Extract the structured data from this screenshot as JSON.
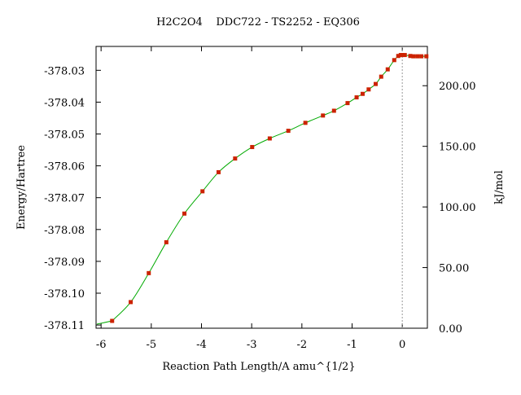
{
  "chart_data": {
    "type": "line",
    "title": "H2C2O4    DDC722 - TS2252 - EQ306",
    "xlabel": "Reaction Path Length/A amu^{1/2}",
    "ylabel": "Energy/Hartree",
    "y2label": "kJ/mol",
    "xlim": [
      -6.1,
      0.5
    ],
    "ylim": [
      -378.111,
      -378.0225
    ],
    "y2lim": [
      0.0,
      232.4
    ],
    "grid": false,
    "legend": "none",
    "x_ticks": [
      -6,
      -5,
      -4,
      -3,
      -2,
      -1,
      0
    ],
    "x_tick_labels": [
      "-6",
      "-5",
      "-4",
      "-3",
      "-2",
      "-1",
      "0"
    ],
    "y_ticks": [
      -378.11,
      -378.1,
      -378.09,
      -378.08,
      -378.07,
      -378.06,
      -378.05,
      -378.04,
      -378.03
    ],
    "y_tick_labels": [
      "-378.11",
      "-378.10",
      "-378.09",
      "-378.08",
      "-378.07",
      "-378.06",
      "-378.05",
      "-378.04",
      "-378.03"
    ],
    "y2_ticks": [
      0,
      50,
      100,
      150,
      200
    ],
    "y2_tick_labels": [
      "0.00",
      "50.00",
      "100.00",
      "150.00",
      "200.00"
    ],
    "ts_marker_x": 0,
    "line_color": "#00aa00",
    "marker_color": "#cc2200",
    "ts_line_color": "#999999",
    "series": [
      {
        "x": [
          -5.78,
          -5.41,
          -5.05,
          -4.7,
          -4.34,
          -3.98,
          -3.66,
          -3.33,
          -2.99,
          -2.64,
          -2.27,
          -1.93,
          -1.58,
          -1.36,
          -1.09,
          -0.91,
          -0.79,
          -0.67,
          -0.53,
          -0.42,
          -0.29,
          -0.16,
          -0.08,
          -0.03,
          0.0,
          0.05,
          0.16,
          0.22,
          0.3,
          0.38,
          0.48
        ],
        "y": [
          -378.1087,
          -378.1028,
          -378.0937,
          -378.084,
          -378.075,
          -378.068,
          -378.062,
          -378.0577,
          -378.0541,
          -378.0514,
          -378.049,
          -378.0465,
          -378.0442,
          -378.0427,
          -378.0403,
          -378.0385,
          -378.0374,
          -378.036,
          -378.0343,
          -378.032,
          -378.0297,
          -378.0268,
          -378.0255,
          -378.0252,
          -378.0252,
          -378.0252,
          -378.0255,
          -378.0256,
          -378.0256,
          -378.0256,
          -378.0256
        ]
      }
    ]
  }
}
